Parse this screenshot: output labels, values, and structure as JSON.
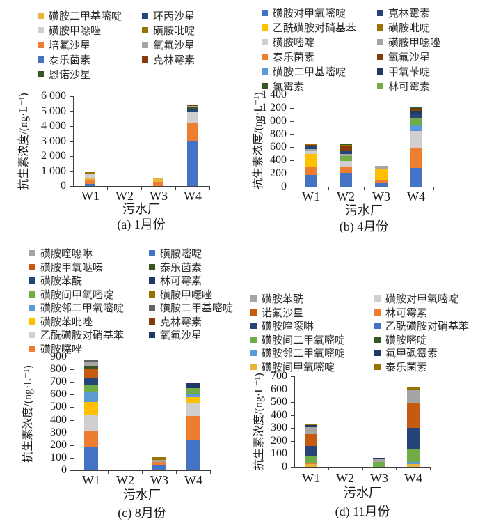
{
  "chart_data": [
    {
      "id": "a",
      "type": "bar",
      "stacked": true,
      "caption": "(a) 1月份",
      "xlabel": "污水厂",
      "ylabel": "抗生素浓度/(ng·L⁻¹)",
      "categories": [
        "W1",
        "W2",
        "W3",
        "W4"
      ],
      "ylim": [
        0,
        6000
      ],
      "ytick_step": 1000,
      "series": [
        {
          "name": "泰乐菌素",
          "color": "#4472C4",
          "values": [
            130,
            0,
            0,
            3000
          ]
        },
        {
          "name": "培氟沙星",
          "color": "#ED7D31",
          "values": [
            270,
            0,
            290,
            1150
          ]
        },
        {
          "name": "磺胺二甲基嘧啶",
          "color": "#E9B43C",
          "values": [
            160,
            0,
            270,
            0
          ]
        },
        {
          "name": "磺胺甲噁唑",
          "color": "#D0CECE",
          "values": [
            280,
            0,
            0,
            750
          ]
        },
        {
          "name": "磺胺吡啶",
          "color": "#997300",
          "values": [
            110,
            0,
            0,
            0
          ]
        },
        {
          "name": "环丙沙星",
          "color": "#264478",
          "values": [
            0,
            0,
            0,
            200
          ]
        },
        {
          "name": "恩诺沙星",
          "color": "#375623",
          "values": [
            0,
            0,
            0,
            150
          ]
        },
        {
          "name": "氧氟沙星",
          "color": "#A5A5A5",
          "values": [
            0,
            0,
            0,
            100
          ]
        },
        {
          "name": "克林霉素",
          "color": "#843C0C",
          "values": [
            0,
            0,
            0,
            50
          ]
        }
      ],
      "legend_columns": [
        [
          "磺胺二甲基嘧啶",
          "磺胺甲噁唑",
          "培氟沙星",
          "泰乐菌素",
          "恩诺沙星"
        ],
        [
          "环丙沙星",
          "磺胺吡啶",
          "氧氟沙星",
          "克林霉素"
        ]
      ]
    },
    {
      "id": "b",
      "type": "bar",
      "stacked": true,
      "caption": "(b) 4月份",
      "xlabel": "污水厂",
      "ylabel": "抗生素浓度/(ng·L⁻¹)",
      "categories": [
        "W1",
        "W2",
        "W3",
        "W4"
      ],
      "ylim": [
        0,
        1400
      ],
      "ytick_step": 200,
      "series": [
        {
          "name": "磺胺对甲氧嘧啶",
          "color": "#4472C4",
          "values": [
            180,
            210,
            50,
            290
          ]
        },
        {
          "name": "泰乐菌素",
          "color": "#ED7D31",
          "values": [
            120,
            90,
            40,
            300
          ]
        },
        {
          "name": "乙酰磺胺对硝基苯",
          "color": "#FFC000",
          "values": [
            200,
            0,
            170,
            0
          ]
        },
        {
          "name": "磺胺嘧啶",
          "color": "#D0CECE",
          "values": [
            40,
            100,
            0,
            270
          ]
        },
        {
          "name": "磺胺二甲基嘧啶",
          "color": "#5B9BD5",
          "values": [
            0,
            0,
            0,
            90
          ]
        },
        {
          "name": "林可霉素",
          "color": "#70AD47",
          "values": [
            0,
            70,
            0,
            120
          ]
        },
        {
          "name": "磺胺甲噁唑",
          "color": "#A5A5A5",
          "values": [
            30,
            30,
            50,
            0
          ]
        },
        {
          "name": "克林霉素",
          "color": "#264478",
          "values": [
            40,
            50,
            0,
            60
          ]
        },
        {
          "name": "甲氧苄啶",
          "color": "#1F3864",
          "values": [
            0,
            0,
            0,
            30
          ]
        },
        {
          "name": "氧氟沙星",
          "color": "#843C0C",
          "values": [
            20,
            60,
            0,
            40
          ]
        },
        {
          "name": "磺胺吡啶",
          "color": "#997300",
          "values": [
            15,
            25,
            0,
            0
          ]
        },
        {
          "name": "氯霉素",
          "color": "#375623",
          "values": [
            0,
            15,
            0,
            30
          ]
        }
      ],
      "legend_columns": [
        [
          "磺胺对甲氧嘧啶",
          "乙酰磺胺对硝基苯",
          "磺胺嘧啶",
          "泰乐菌素",
          "磺胺二甲基嘧啶",
          "氯霉素"
        ],
        [
          "克林霉素",
          "磺胺吡啶",
          "磺胺甲噁唑",
          "氧氟沙星",
          "甲氧苄啶",
          "林可霉素"
        ]
      ]
    },
    {
      "id": "c",
      "type": "bar",
      "stacked": true,
      "caption": "(c) 8月份",
      "xlabel": "污水厂",
      "ylabel": "抗生素浓度/(ng·L⁻¹)",
      "categories": [
        "W1",
        "W2",
        "W3",
        "W4"
      ],
      "ylim": [
        0,
        900
      ],
      "ytick_step": 100,
      "series": [
        {
          "name": "磺胺嘧啶",
          "color": "#4472C4",
          "values": [
            185,
            0,
            40,
            235
          ]
        },
        {
          "name": "磺胺噻唑",
          "color": "#ED7D31",
          "values": [
            125,
            0,
            30,
            195
          ]
        },
        {
          "name": "乙酰磺胺对硝基苯",
          "color": "#D0CECE",
          "values": [
            120,
            0,
            0,
            105
          ]
        },
        {
          "name": "磺胺苯吡唑",
          "color": "#FFC000",
          "values": [
            105,
            0,
            0,
            45
          ]
        },
        {
          "name": "磺胺邻二甲氧嘧啶",
          "color": "#5B9BD5",
          "values": [
            85,
            0,
            0,
            30
          ]
        },
        {
          "name": "磺胺间甲氧嘧啶",
          "color": "#70AD47",
          "values": [
            55,
            0,
            0,
            45
          ]
        },
        {
          "name": "磺胺苯酰",
          "color": "#264478",
          "values": [
            50,
            0,
            0,
            0
          ]
        },
        {
          "name": "磺胺甲氧哒嗪",
          "color": "#C55A11",
          "values": [
            75,
            0,
            0,
            0
          ]
        },
        {
          "name": "泰乐菌素",
          "color": "#375623",
          "values": [
            20,
            0,
            0,
            0
          ]
        },
        {
          "name": "磺胺喹噁啉",
          "color": "#A5A5A5",
          "values": [
            30,
            0,
            15,
            0
          ]
        },
        {
          "name": "磺胺二甲基嘧啶",
          "color": "#636363",
          "values": [
            20,
            0,
            0,
            0
          ]
        },
        {
          "name": "磺胺甲噁唑",
          "color": "#997300",
          "values": [
            0,
            0,
            20,
            0
          ]
        },
        {
          "name": "克林霉素",
          "color": "#843C0C",
          "values": [
            0,
            0,
            0,
            0
          ]
        },
        {
          "name": "林可霉素",
          "color": "#1F3864",
          "values": [
            0,
            0,
            0,
            0
          ]
        },
        {
          "name": "氧氟沙星",
          "color": "#203864",
          "values": [
            0,
            0,
            0,
            40
          ]
        }
      ],
      "legend_columns": [
        [
          "磺胺喹噁啉",
          "磺胺甲氧哒嗪",
          "磺胺苯酰",
          "磺胺间甲氧嘧啶",
          "磺胺邻二甲氧嘧啶",
          "磺胺苯吡唑",
          "乙酰磺胺对硝基苯",
          "磺胺噻唑"
        ],
        [
          "磺胺嘧啶",
          "泰乐菌素",
          "林可霉素",
          "磺胺甲噁唑",
          "磺胺二甲基嘧啶",
          "克林霉素",
          "氧氟沙星"
        ]
      ]
    },
    {
      "id": "d",
      "type": "bar",
      "stacked": true,
      "caption": "(d) 11月份",
      "xlabel": "污水厂",
      "ylabel": "抗生素浓度/(ng·L⁻¹)",
      "categories": [
        "W1",
        "W2",
        "W3",
        "W4"
      ],
      "ylim": [
        0,
        700
      ],
      "ytick_step": 100,
      "series": [
        {
          "name": "磺胺间甲氧嘧啶",
          "color": "#E9B43C",
          "values": [
            20,
            0,
            0,
            20
          ]
        },
        {
          "name": "磺胺邻二甲氧嘧啶",
          "color": "#5B9BD5",
          "values": [
            0,
            0,
            0,
            15
          ]
        },
        {
          "name": "林可霉素",
          "color": "#ED7D31",
          "values": [
            10,
            0,
            0,
            0
          ]
        },
        {
          "name": "磺胺间二甲氧嘧啶",
          "color": "#70AD47",
          "values": [
            50,
            0,
            35,
            100
          ]
        },
        {
          "name": "磺胺喹噁啉",
          "color": "#264478",
          "values": [
            80,
            0,
            0,
            160
          ]
        },
        {
          "name": "诺氟沙星",
          "color": "#C55A11",
          "values": [
            90,
            0,
            0,
            195
          ]
        },
        {
          "name": "磺胺苯酰",
          "color": "#A5A5A5",
          "values": [
            55,
            0,
            20,
            100
          ]
        },
        {
          "name": "氟甲砜霉素",
          "color": "#1F3864",
          "values": [
            15,
            0,
            10,
            0
          ]
        },
        {
          "name": "泰乐菌素",
          "color": "#997300",
          "values": [
            10,
            0,
            0,
            20
          ]
        },
        {
          "name": "磺胺对甲氧嘧啶",
          "color": "#D0CECE",
          "values": [
            0,
            0,
            0,
            0
          ]
        },
        {
          "name": "乙酰磺胺对硝基苯",
          "color": "#4472C4",
          "values": [
            0,
            0,
            0,
            0
          ]
        },
        {
          "name": "磺胺嘧啶",
          "color": "#375623",
          "values": [
            0,
            0,
            0,
            0
          ]
        }
      ],
      "legend_columns": [
        [
          "磺胺苯酰",
          "诺氟沙星",
          "磺胺喹噁啉",
          "磺胺间二甲氧嘧啶",
          "磺胺邻二甲氧嘧啶",
          "磺胺间甲氧嘧啶"
        ],
        [
          "磺胺对甲氧嘧啶",
          "林可霉素",
          "乙酰磺胺对硝基苯",
          "磺胺嘧啶",
          "氟甲砜霉素",
          "泰乐菌素"
        ]
      ]
    }
  ]
}
